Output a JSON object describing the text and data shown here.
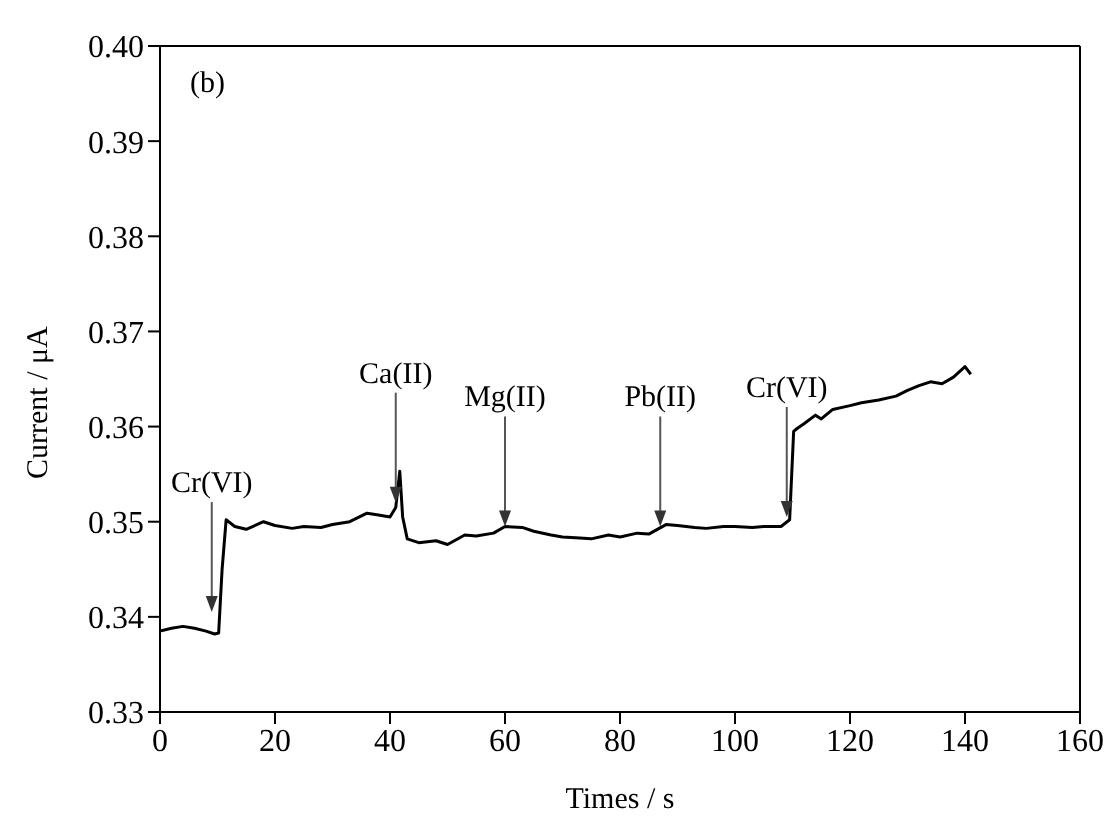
{
  "chart_data": {
    "type": "line",
    "xlabel": "Times / s",
    "ylabel": "Current / μA",
    "annotations": [
      "(b)",
      {
        "text": "Cr(VI)",
        "x": 9,
        "y": 0.3405
      },
      {
        "text": "Ca(II)",
        "x": 41,
        "y": 0.352
      },
      {
        "text": "Mg(II)",
        "x": 60,
        "y": 0.3495
      },
      {
        "text": "Pb(II)",
        "x": 87,
        "y": 0.3495
      },
      {
        "text": "Cr(VI)",
        "x": 109,
        "y": 0.3505
      }
    ],
    "series": [
      {
        "color": "#000000",
        "x": [
          0,
          2,
          4,
          6,
          8,
          9.5,
          10.2,
          10.8,
          11.5,
          13,
          15,
          18,
          20,
          23,
          25,
          28,
          30,
          33,
          36,
          38,
          40,
          41,
          41.7,
          42.2,
          43,
          45,
          48,
          50,
          53,
          55,
          58,
          60,
          63,
          65,
          68,
          70,
          73,
          75,
          78,
          80,
          83,
          85,
          88,
          90,
          93,
          95,
          98,
          100,
          103,
          105,
          108,
          109.5,
          110.2,
          110.8,
          112,
          114,
          115,
          117,
          120,
          122,
          125,
          128,
          130,
          132,
          134,
          136,
          138,
          140,
          141
        ],
        "values": [
          0.3385,
          0.3388,
          0.339,
          0.3388,
          0.3385,
          0.3382,
          0.3383,
          0.345,
          0.3502,
          0.3495,
          0.3492,
          0.35,
          0.3496,
          0.3493,
          0.3495,
          0.3494,
          0.3497,
          0.35,
          0.3509,
          0.3507,
          0.3505,
          0.3515,
          0.3553,
          0.3505,
          0.3482,
          0.3478,
          0.348,
          0.3476,
          0.3486,
          0.3485,
          0.3488,
          0.3495,
          0.3494,
          0.349,
          0.3486,
          0.3484,
          0.3483,
          0.3482,
          0.3486,
          0.3484,
          0.3488,
          0.3487,
          0.3497,
          0.3496,
          0.3494,
          0.3493,
          0.3495,
          0.3495,
          0.3494,
          0.3495,
          0.3495,
          0.3502,
          0.3595,
          0.3598,
          0.3603,
          0.3612,
          0.3608,
          0.3618,
          0.3622,
          0.3625,
          0.3628,
          0.3632,
          0.3638,
          0.3643,
          0.3647,
          0.3645,
          0.3652,
          0.3663,
          0.3655
        ]
      }
    ],
    "xlim": [
      0,
      160
    ],
    "xticks": [
      0,
      20,
      40,
      60,
      80,
      100,
      120,
      140,
      160
    ],
    "ylim": [
      0.33,
      0.4
    ],
    "yticks": [
      {
        "value": 0.33,
        "label": "0.33"
      },
      {
        "value": 0.34,
        "label": "0.34"
      },
      {
        "value": 0.35,
        "label": "0.35"
      },
      {
        "value": 0.36,
        "label": "0.36"
      },
      {
        "value": 0.37,
        "label": "0.37"
      },
      {
        "value": 0.38,
        "label": "0.38"
      },
      {
        "value": 0.39,
        "label": "0.39"
      },
      {
        "value": 0.4,
        "label": "0.40"
      }
    ],
    "grid": false,
    "legend": false,
    "marker": "none",
    "line_style": "solid"
  }
}
